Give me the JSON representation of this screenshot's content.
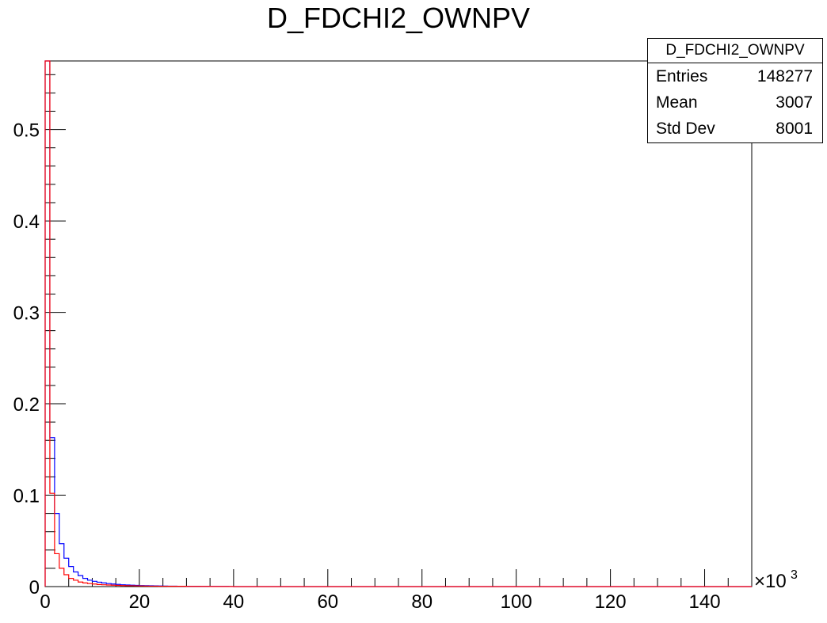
{
  "chart_data": {
    "type": "histogram",
    "title": "D_FDCHI2_OWNPV",
    "xlabel": "",
    "ylabel": "",
    "x_multiplier": "×10",
    "x_multiplier_exp": "3",
    "xlim": [
      0,
      150
    ],
    "ylim": [
      0,
      0.575
    ],
    "x_ticks": [
      0,
      20,
      40,
      60,
      80,
      100,
      120,
      140
    ],
    "x_tick_labels": [
      "0",
      "20",
      "40",
      "60",
      "80",
      "100",
      "120",
      "140"
    ],
    "y_ticks": [
      0,
      0.1,
      0.2,
      0.3,
      0.4,
      0.5
    ],
    "y_tick_labels": [
      "0",
      "0.1",
      "0.2",
      "0.3",
      "0.4",
      "0.5"
    ],
    "bin_width": 1,
    "series": [
      {
        "color": "#0000ff",
        "values": [
          0.575,
          0.163,
          0.08,
          0.047,
          0.031,
          0.022,
          0.016,
          0.012,
          0.009,
          0.007,
          0.0058,
          0.0048,
          0.004,
          0.0033,
          0.0028,
          0.0024,
          0.002,
          0.0017,
          0.0015,
          0.0013,
          0.0011,
          0.001,
          0.0009,
          0.0008,
          0.0007,
          0.0006,
          0.0005,
          0.0005,
          0.0004,
          0.0004,
          0.0003,
          0.0003,
          0.0003,
          0.0002,
          0.0002,
          0.0002,
          0.0002,
          0.0002,
          0.0002,
          0.0001
        ]
      },
      {
        "color": "#ff0000",
        "values": [
          0.575,
          0.102,
          0.036,
          0.02,
          0.013,
          0.009,
          0.007,
          0.005,
          0.004,
          0.0033,
          0.0028,
          0.0023,
          0.002,
          0.0017,
          0.0015,
          0.0013,
          0.0011,
          0.001,
          0.0009,
          0.0008,
          0.0007,
          0.0006,
          0.0005,
          0.0005,
          0.0004,
          0.0004,
          0.0003,
          0.0003,
          0.0003,
          0.0003,
          0.0002,
          0.0002,
          0.0002,
          0.0002,
          0.0002,
          0.0001,
          0.0001,
          0.0001,
          0.0001,
          0.0001
        ]
      }
    ],
    "stats": {
      "title": "D_FDCHI2_OWNPV",
      "rows": [
        {
          "label": "Entries",
          "value": "148277"
        },
        {
          "label": "Mean",
          "value": "3007"
        },
        {
          "label": "Std Dev",
          "value": "8001"
        }
      ]
    }
  }
}
